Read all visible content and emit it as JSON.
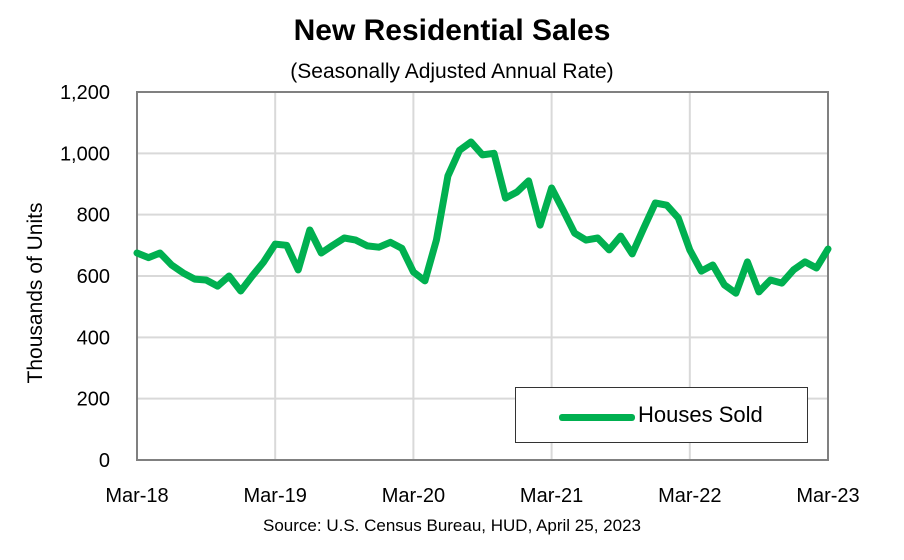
{
  "chart_data": {
    "type": "line",
    "title": "New Residential Sales",
    "subtitle": "(Seasonally Adjusted Annual Rate)",
    "ylabel": "Thousands of Units",
    "xlabel": "",
    "source": "Source:  U.S. Census Bureau, HUD, April 25, 2023",
    "ylim": [
      0,
      1200
    ],
    "yticks": [
      "0",
      "200",
      "400",
      "600",
      "800",
      "1,000",
      "1,200"
    ],
    "xticks": [
      "Mar-18",
      "Mar-19",
      "Mar-20",
      "Mar-21",
      "Mar-22",
      "Mar-23"
    ],
    "grid": true,
    "legend_position": "bottom-right",
    "color": "#00b050",
    "series": [
      {
        "name": "Houses Sold",
        "x": [
          "2018-03",
          "2018-04",
          "2018-05",
          "2018-06",
          "2018-07",
          "2018-08",
          "2018-09",
          "2018-10",
          "2018-11",
          "2018-12",
          "2019-01",
          "2019-02",
          "2019-03",
          "2019-04",
          "2019-05",
          "2019-06",
          "2019-07",
          "2019-08",
          "2019-09",
          "2019-10",
          "2019-11",
          "2019-12",
          "2020-01",
          "2020-02",
          "2020-03",
          "2020-04",
          "2020-05",
          "2020-06",
          "2020-07",
          "2020-08",
          "2020-09",
          "2020-10",
          "2020-11",
          "2020-12",
          "2021-01",
          "2021-02",
          "2021-03",
          "2021-04",
          "2021-05",
          "2021-06",
          "2021-07",
          "2021-08",
          "2021-09",
          "2021-10",
          "2021-11",
          "2021-12",
          "2022-01",
          "2022-02",
          "2022-03",
          "2022-04",
          "2022-05",
          "2022-06",
          "2022-07",
          "2022-08",
          "2022-09",
          "2022-10",
          "2022-11",
          "2022-12",
          "2023-01",
          "2023-02",
          "2023-03"
        ],
        "values": [
          675,
          660,
          675,
          636,
          610,
          590,
          587,
          567,
          600,
          551,
          600,
          646,
          704,
          700,
          620,
          750,
          675,
          700,
          724,
          717,
          698,
          694,
          710,
          690,
          613,
          584,
          717,
          926,
          1010,
          1037,
          995,
          1000,
          854,
          874,
          910,
          766,
          887,
          815,
          740,
          717,
          724,
          685,
          730,
          672,
          756,
          838,
          831,
          789,
          685,
          616,
          636,
          571,
          544,
          646,
          548,
          587,
          577,
          620,
          646,
          626,
          688
        ]
      }
    ]
  }
}
